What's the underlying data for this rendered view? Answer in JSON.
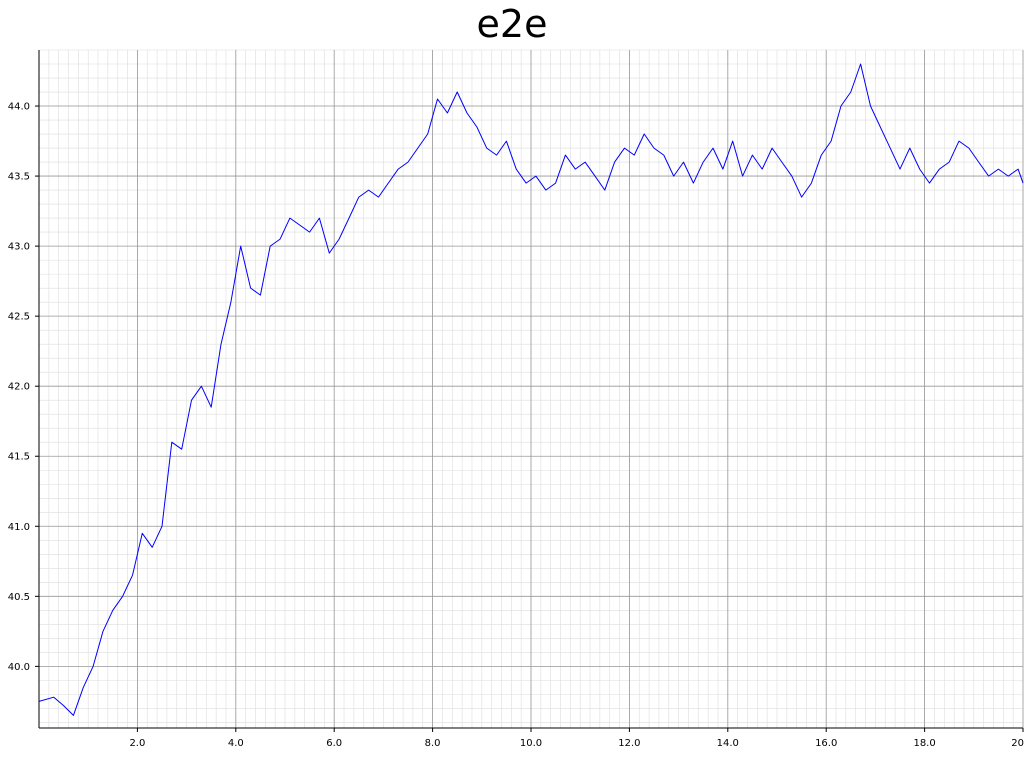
{
  "chart_data": {
    "type": "line",
    "title": "e2e",
    "xlabel": "",
    "ylabel": "",
    "xlim": [
      0.0,
      20.0
    ],
    "ylim": [
      39.56,
      44.4
    ],
    "grid": true,
    "x_ticks": [
      2.0,
      4.0,
      6.0,
      8.0,
      10.0,
      12.0,
      14.0,
      16.0,
      18.0,
      20.0
    ],
    "x_tick_labels": [
      "2.0",
      "4.0",
      "6.0",
      "8.0",
      "10.0",
      "12.0",
      "14.0",
      "16.0",
      "18.0",
      "20"
    ],
    "y_ticks": [
      40.0,
      40.5,
      41.0,
      41.5,
      42.0,
      42.5,
      43.0,
      43.5,
      44.0
    ],
    "y_tick_labels": [
      "40.0",
      "40.5",
      "41.0",
      "41.5",
      "42.0",
      "42.5",
      "43.0",
      "43.5",
      "44.0"
    ],
    "series": [
      {
        "color": "#0000ff",
        "x": [
          0.0,
          0.3,
          0.5,
          0.7,
          0.9,
          1.1,
          1.3,
          1.5,
          1.7,
          1.9,
          2.1,
          2.3,
          2.5,
          2.7,
          2.9,
          3.1,
          3.3,
          3.5,
          3.7,
          3.9,
          4.1,
          4.3,
          4.5,
          4.7,
          4.9,
          5.1,
          5.3,
          5.5,
          5.7,
          5.9,
          6.1,
          6.3,
          6.5,
          6.7,
          6.9,
          7.1,
          7.3,
          7.5,
          7.7,
          7.9,
          8.1,
          8.3,
          8.5,
          8.7,
          8.9,
          9.1,
          9.3,
          9.5,
          9.7,
          9.9,
          10.1,
          10.3,
          10.5,
          10.7,
          10.9,
          11.1,
          11.3,
          11.5,
          11.7,
          11.9,
          12.1,
          12.3,
          12.5,
          12.7,
          12.9,
          13.1,
          13.3,
          13.5,
          13.7,
          13.9,
          14.1,
          14.3,
          14.5,
          14.7,
          14.9,
          15.1,
          15.3,
          15.5,
          15.7,
          15.9,
          16.1,
          16.3,
          16.5,
          16.7,
          16.9,
          17.1,
          17.3,
          17.5,
          17.7,
          17.9,
          18.1,
          18.3,
          18.5,
          18.7,
          18.9,
          19.1,
          19.3,
          19.5,
          19.7,
          19.9,
          20.0
        ],
        "values": [
          39.75,
          39.78,
          39.72,
          39.65,
          39.85,
          40.0,
          40.25,
          40.4,
          40.5,
          40.65,
          40.95,
          40.85,
          41.0,
          41.6,
          41.55,
          41.9,
          42.0,
          41.85,
          42.3,
          42.6,
          43.0,
          42.7,
          42.65,
          43.0,
          43.05,
          43.2,
          43.15,
          43.1,
          43.2,
          42.95,
          43.05,
          43.2,
          43.35,
          43.4,
          43.35,
          43.45,
          43.55,
          43.6,
          43.7,
          43.8,
          44.05,
          43.95,
          44.1,
          43.95,
          43.85,
          43.7,
          43.65,
          43.75,
          43.55,
          43.45,
          43.5,
          43.4,
          43.45,
          43.65,
          43.55,
          43.6,
          43.5,
          43.4,
          43.6,
          43.7,
          43.65,
          43.8,
          43.7,
          43.65,
          43.5,
          43.6,
          43.45,
          43.6,
          43.7,
          43.55,
          43.75,
          43.5,
          43.65,
          43.55,
          43.7,
          43.6,
          43.5,
          43.35,
          43.45,
          43.65,
          43.75,
          44.0,
          44.1,
          44.3,
          44.0,
          43.85,
          43.7,
          43.55,
          43.7,
          43.55,
          43.45,
          43.55,
          43.6,
          43.75,
          43.7,
          43.6,
          43.5,
          43.55,
          43.5,
          43.55,
          43.45
        ]
      }
    ]
  }
}
